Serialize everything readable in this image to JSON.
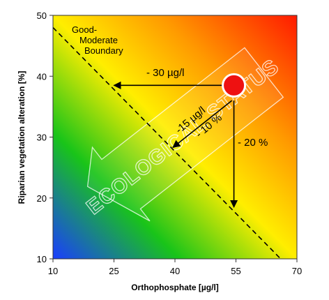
{
  "chart_data": {
    "type": "scatter",
    "xlabel": "Orthophosphate [µg/l]",
    "ylabel": "Riparian vegetation alteration [%]",
    "xlim": [
      10,
      70
    ],
    "ylim": [
      10,
      50
    ],
    "xticks": [
      10,
      25,
      40,
      55,
      70
    ],
    "yticks": [
      10,
      20,
      30,
      40,
      50
    ],
    "background": "gradient: blue (low-left) → green → yellow → orange → red (high-right)",
    "colors": {
      "low": "#1a3dff",
      "mid_low": "#19c419",
      "mid": "#ffee00",
      "mid_high": "#ff9a00",
      "high": "#ff1a00"
    },
    "boundary": {
      "label_lines": [
        "Good-",
        "Moderate",
        "Boundary"
      ],
      "points": [
        [
          10,
          48
        ],
        [
          66,
          10
        ]
      ],
      "style": "dashed"
    },
    "current_state": {
      "x": 54.5,
      "y": 38.5,
      "color": "#ee1111"
    },
    "arrows": [
      {
        "label": "- 30 µg/l",
        "from": [
          53,
          38.5
        ],
        "to": [
          25,
          38.5
        ]
      },
      {
        "label": "-15 µg/l",
        "from": [
          54,
          36
        ],
        "to": [
          39.5,
          28.3
        ]
      },
      {
        "label": "- 10 %",
        "from": [
          54,
          36
        ],
        "to": [
          39.5,
          28.3
        ]
      },
      {
        "label": "- 20 %",
        "from": [
          54.5,
          36
        ],
        "to": [
          54.5,
          18.5
        ]
      }
    ],
    "watermark": "ECOLOGICAL STATUS"
  }
}
